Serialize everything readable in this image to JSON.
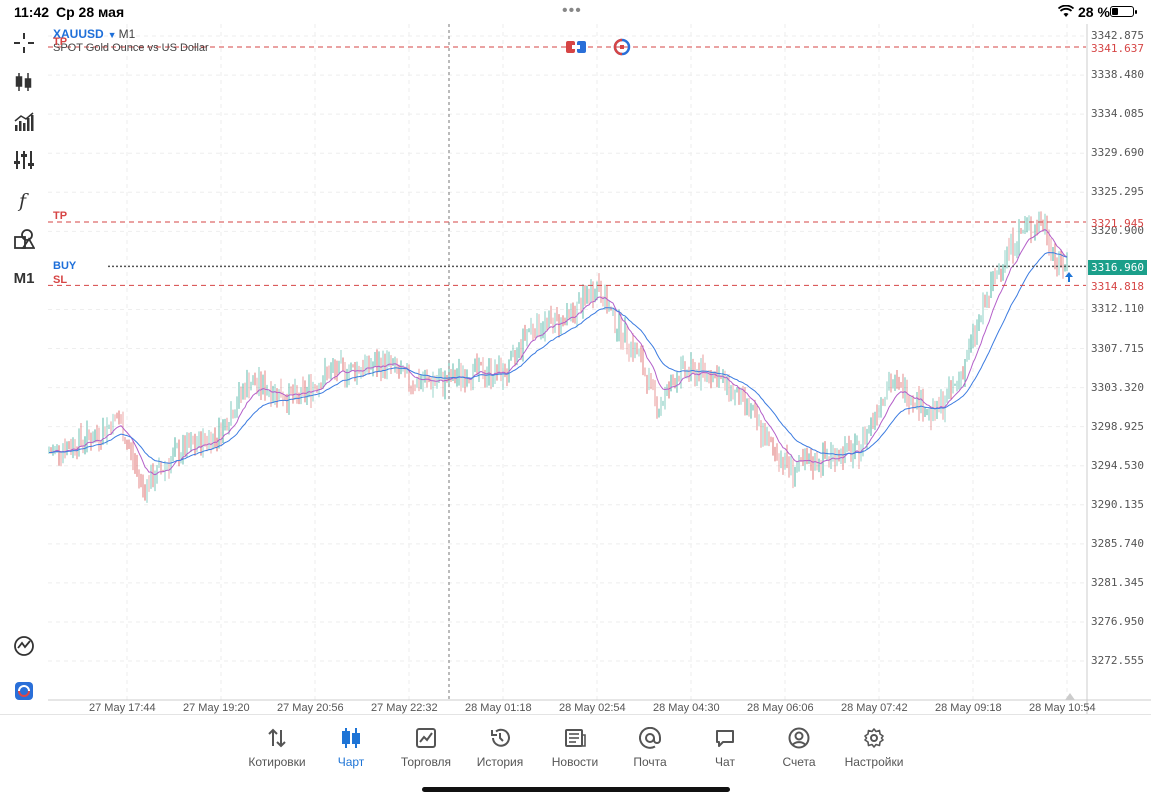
{
  "status_bar": {
    "time": "11:42",
    "date": "Ср 28 мая",
    "battery": "28 %"
  },
  "sidebar": {
    "tools": [
      {
        "name": "crosshair-icon"
      },
      {
        "name": "candlestick-icon"
      },
      {
        "name": "indicators-icon"
      },
      {
        "name": "settings-sliders-icon"
      },
      {
        "name": "function-icon"
      },
      {
        "name": "objects-icon"
      },
      {
        "name": "timeframe",
        "label": "M1"
      }
    ],
    "bottom_tools": [
      {
        "name": "chart-analysis-icon"
      },
      {
        "name": "app-logo-icon"
      }
    ]
  },
  "chart": {
    "symbol": "XAUUSD",
    "timeframe": "M1",
    "description": "SPOT Gold Ounce vs US Dollar",
    "levels": [
      {
        "label": "TP",
        "price": "3341.637",
        "color": "#d64545"
      },
      {
        "label": "TP",
        "price": "3321.945",
        "color": "#d64545"
      },
      {
        "label": "BUY",
        "price": "3316.960",
        "color": "#1e6fd9"
      },
      {
        "label": "SL",
        "price": "3314.818",
        "color": "#d64545"
      }
    ],
    "current_price": "3316.960",
    "price_axis": [
      "3342.875",
      "3338.480",
      "3334.085",
      "3329.690",
      "3325.295",
      "3320.900",
      "3312.110",
      "3307.715",
      "3303.320",
      "3298.925",
      "3294.530",
      "3290.135",
      "3285.740",
      "3281.345",
      "3276.950",
      "3272.555"
    ],
    "time_axis": [
      "27 May 17:44",
      "27 May 19:20",
      "27 May 20:56",
      "27 May 22:32",
      "28 May 01:18",
      "28 May 02:54",
      "28 May 04:30",
      "28 May 06:06",
      "28 May 07:42",
      "28 May 09:18",
      "28 May 10:54"
    ],
    "colors": {
      "bull": "#1b9f8a",
      "bear": "#d64545",
      "ma_fast": "#b45fc9",
      "ma_slow": "#3b7be0"
    }
  },
  "tabs": [
    {
      "label": "Котировки",
      "icon": "quotes-icon"
    },
    {
      "label": "Чарт",
      "icon": "chart-icon",
      "active": true
    },
    {
      "label": "Торговля",
      "icon": "trade-icon"
    },
    {
      "label": "История",
      "icon": "history-icon"
    },
    {
      "label": "Новости",
      "icon": "news-icon"
    },
    {
      "label": "Почта",
      "icon": "mail-icon"
    },
    {
      "label": "Чат",
      "icon": "chat-icon"
    },
    {
      "label": "Счета",
      "icon": "accounts-icon"
    },
    {
      "label": "Настройки",
      "icon": "settings-icon"
    }
  ]
}
